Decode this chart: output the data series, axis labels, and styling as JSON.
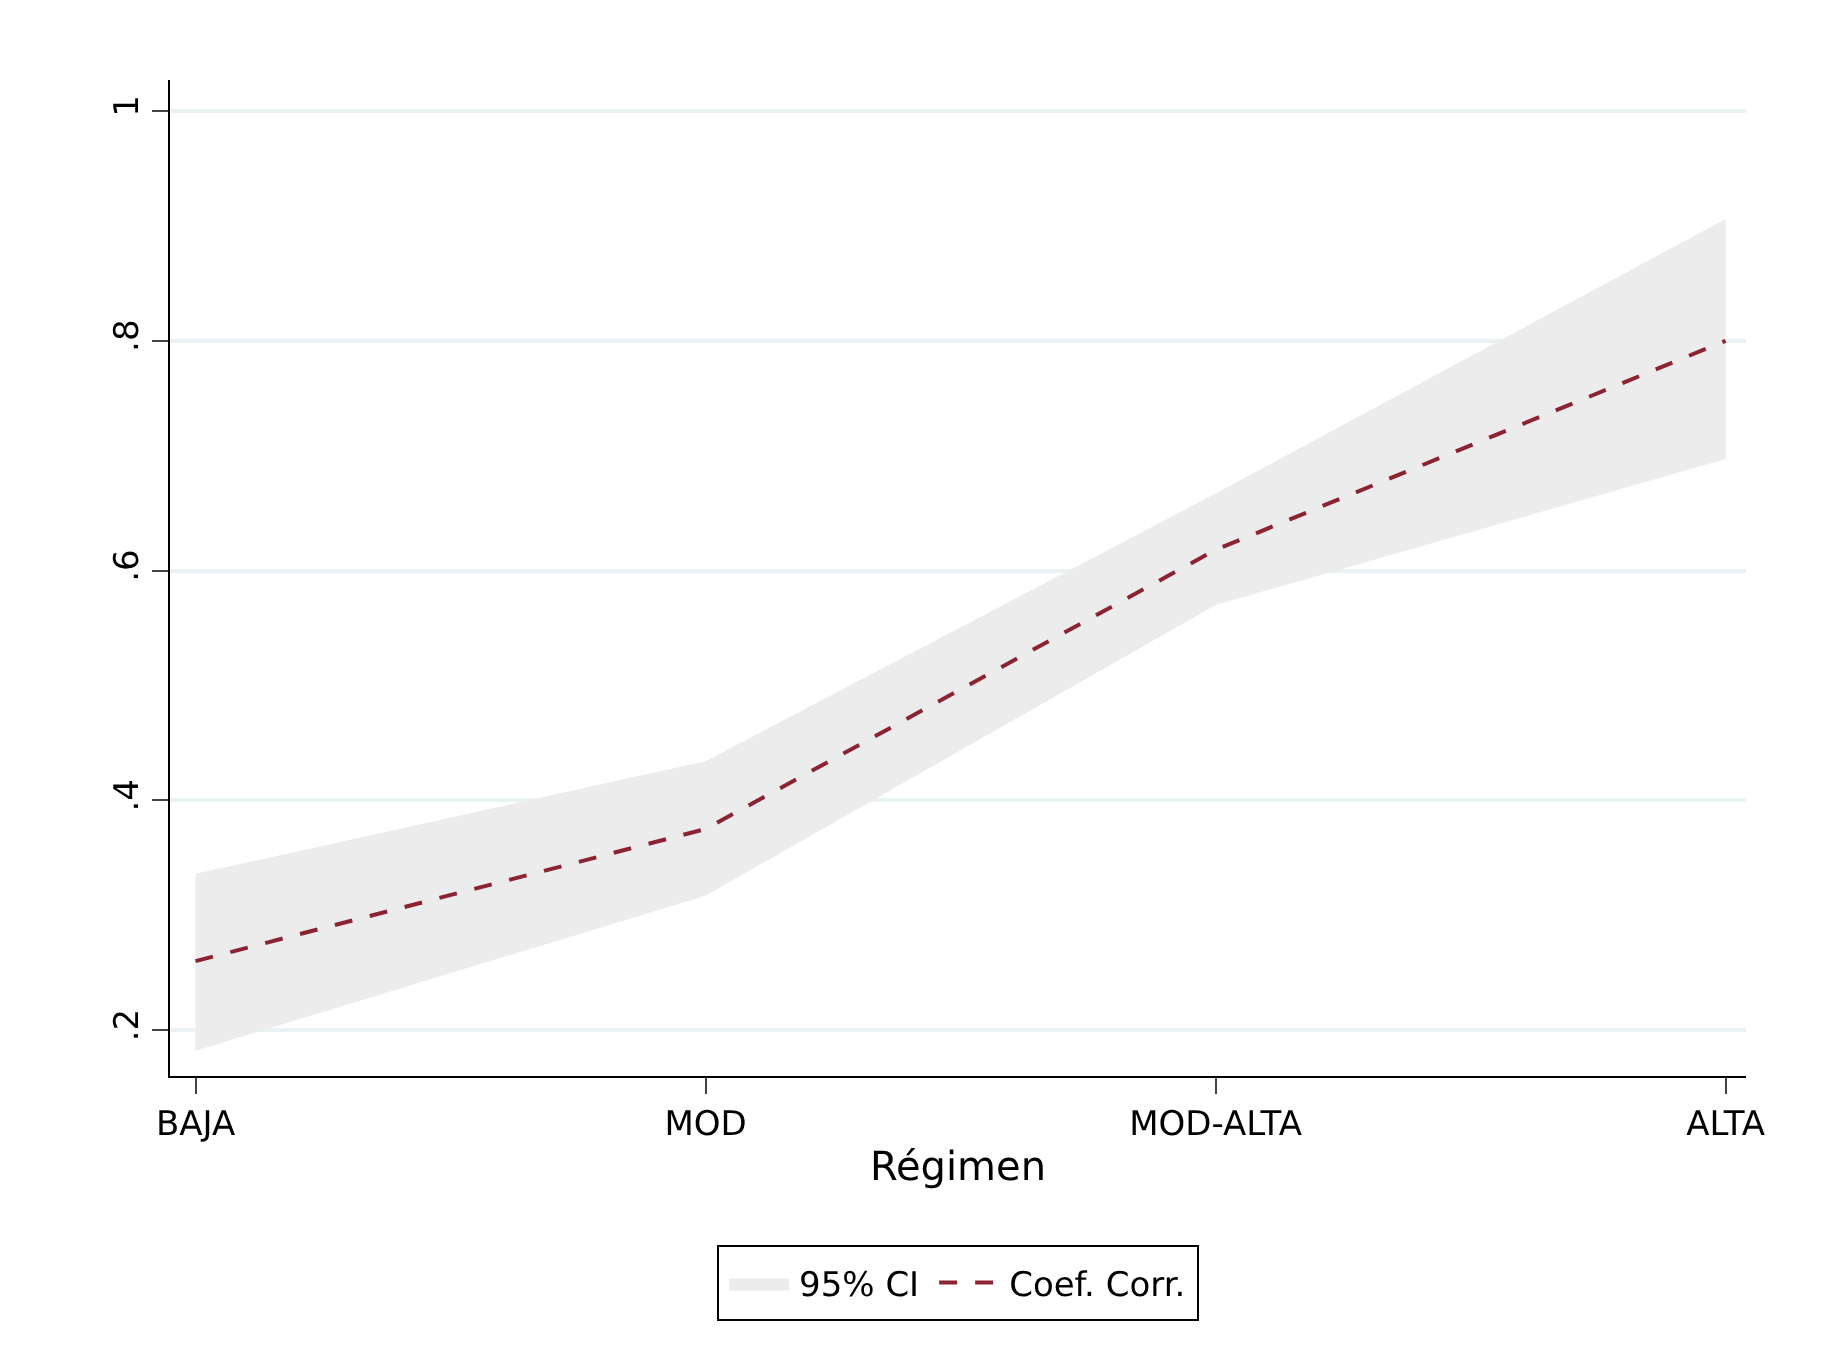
{
  "chart_data": {
    "type": "line",
    "xlabel": "Régimen",
    "categories": [
      "BAJA",
      "MOD",
      "MOD-ALTA",
      "ALTA"
    ],
    "series": [
      {
        "name": "95% CI",
        "color": "#ececec",
        "values": [
          null,
          null,
          null,
          null
        ],
        "lower": [
          0.182,
          0.317,
          0.57,
          0.697
        ],
        "upper": [
          0.336,
          0.434,
          0.667,
          0.906
        ]
      },
      {
        "name": "Coef. Corr.",
        "type": "line",
        "color": "#8b2332",
        "line_style": "dashed",
        "values": [
          0.26,
          0.375,
          0.618,
          0.8
        ]
      }
    ],
    "ylim": [
      0.16,
      1.027
    ],
    "yticks": [
      {
        "value": 0.2,
        "label": ".2"
      },
      {
        "value": 0.4,
        "label": ".4"
      },
      {
        "value": 0.6,
        "label": ".6"
      },
      {
        "value": 0.8,
        "label": ".8"
      },
      {
        "value": 1,
        "label": "1"
      }
    ],
    "grid": "y",
    "legend": "bottom",
    "marker": "none"
  }
}
